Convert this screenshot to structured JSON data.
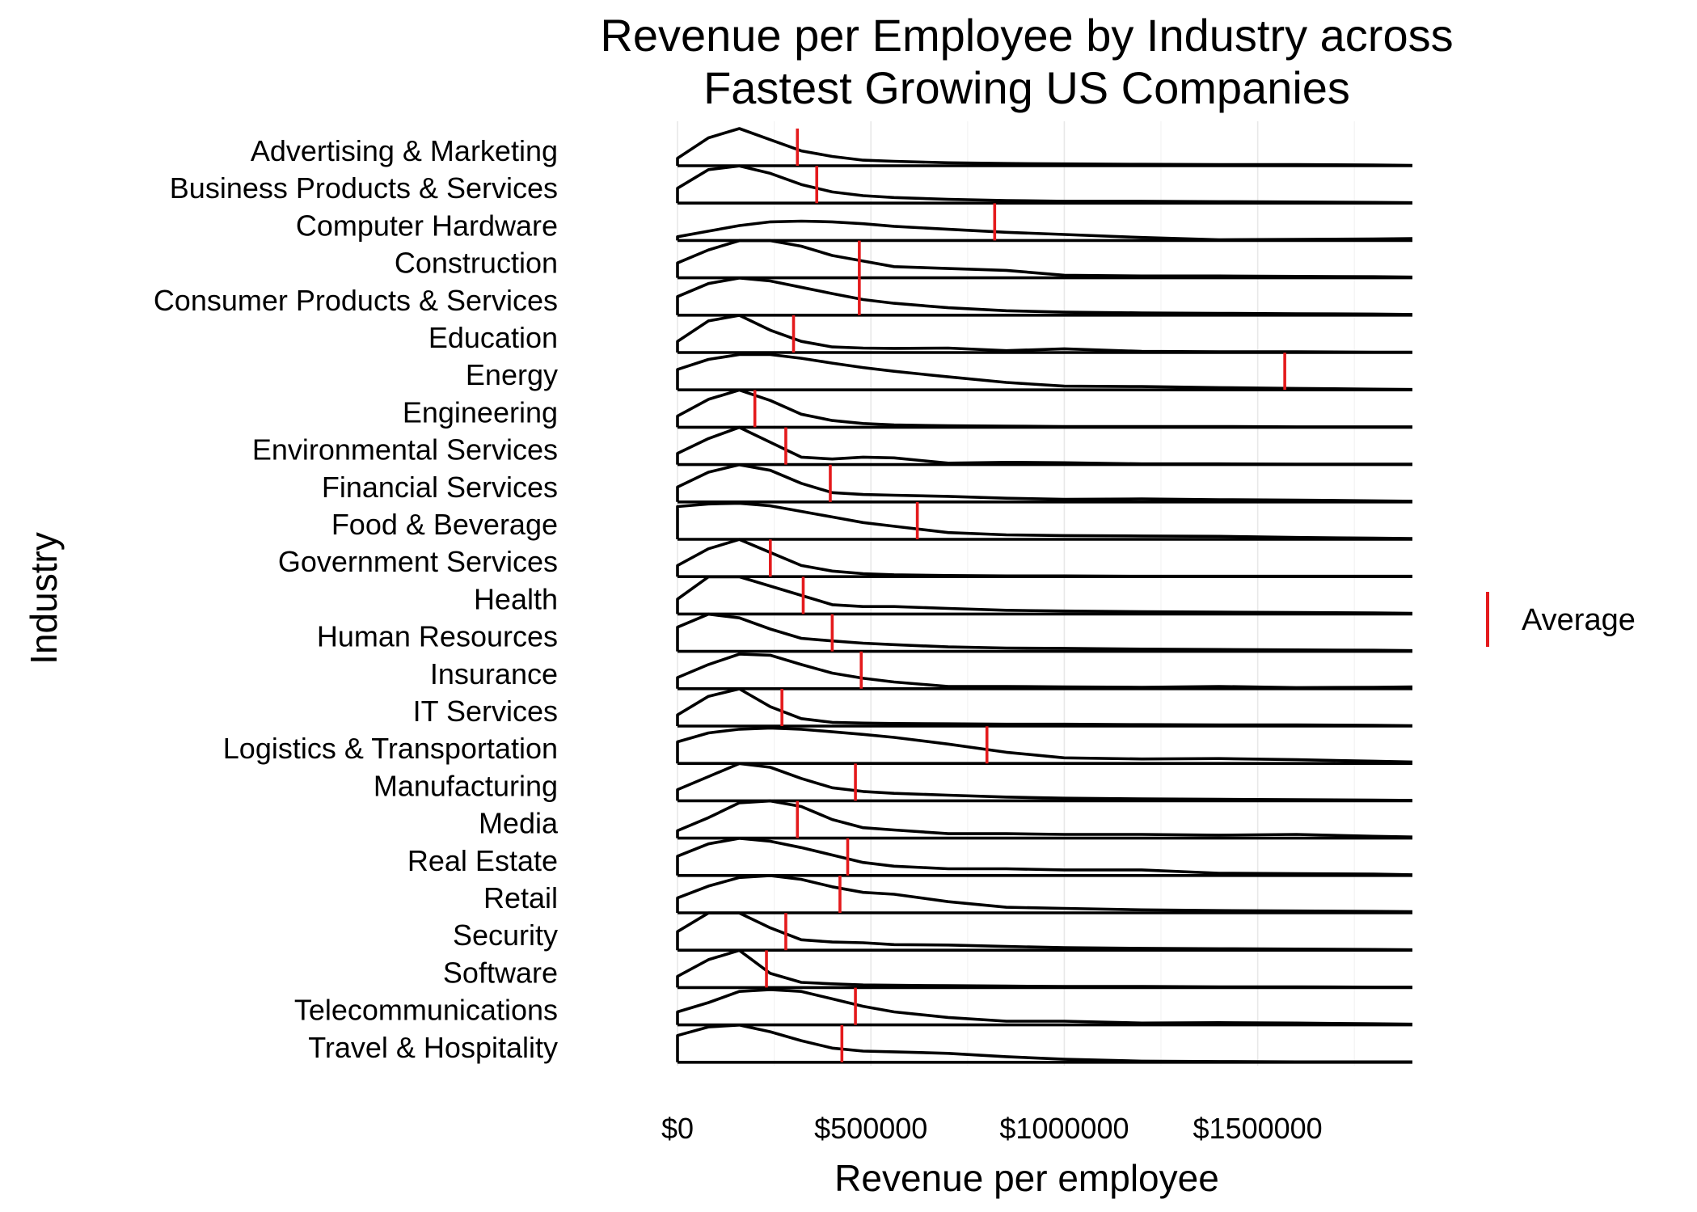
{
  "chart_data": {
    "type": "ridgeline",
    "title_lines": [
      "Revenue per Employee by Industry across",
      "Fastest Growing US Companies"
    ],
    "xlabel": "Revenue per employee",
    "ylabel": "Industry",
    "x_range": [
      0,
      1900000
    ],
    "x_ticks": [
      {
        "value": 0,
        "label": "$0"
      },
      {
        "value": 500000,
        "label": "$500000"
      },
      {
        "value": 1000000,
        "label": "$1000000"
      },
      {
        "value": 1500000,
        "label": "$1500000"
      }
    ],
    "grid": true,
    "legend": {
      "position": "right",
      "entries": [
        {
          "label": "Average",
          "color": "#e41a1c",
          "marker": "vertical-line"
        }
      ]
    },
    "density_color": "#000000",
    "average_color": "#e41a1c",
    "sample_x": [
      0,
      80000,
      160000,
      240000,
      320000,
      400000,
      480000,
      560000,
      700000,
      850000,
      1000000,
      1200000,
      1400000,
      1600000,
      1800000,
      1900000
    ],
    "series": [
      {
        "name": "Advertising & Marketing",
        "average": 310000,
        "density": [
          0.2,
          0.75,
          1,
          0.7,
          0.4,
          0.25,
          0.15,
          0.12,
          0.08,
          0.06,
          0.05,
          0.04,
          0.03,
          0.03,
          0.02,
          0.01
        ]
      },
      {
        "name": "Business Products & Services",
        "average": 360000,
        "density": [
          0.4,
          0.9,
          1,
          0.8,
          0.5,
          0.3,
          0.2,
          0.15,
          0.1,
          0.07,
          0.05,
          0.05,
          0.04,
          0.03,
          0.02,
          0.01
        ]
      },
      {
        "name": "Computer Hardware",
        "average": 820000,
        "density": [
          0.1,
          0.25,
          0.4,
          0.5,
          0.52,
          0.5,
          0.45,
          0.38,
          0.3,
          0.22,
          0.16,
          0.08,
          0.02,
          0.03,
          0.04,
          0.05
        ]
      },
      {
        "name": "Construction",
        "average": 470000,
        "density": [
          0.4,
          0.75,
          1,
          1,
          0.85,
          0.6,
          0.45,
          0.3,
          0.25,
          0.2,
          0.07,
          0.05,
          0.05,
          0.04,
          0.03,
          0.02
        ]
      },
      {
        "name": "Consumer Products & Services",
        "average": 470000,
        "density": [
          0.5,
          0.85,
          1,
          0.92,
          0.75,
          0.58,
          0.42,
          0.32,
          0.2,
          0.12,
          0.08,
          0.06,
          0.05,
          0.04,
          0.03,
          0.02
        ]
      },
      {
        "name": "Education",
        "average": 300000,
        "density": [
          0.3,
          0.85,
          1,
          0.6,
          0.3,
          0.15,
          0.12,
          0.11,
          0.12,
          0.05,
          0.1,
          0.03,
          0.02,
          0.02,
          0.01,
          0.01
        ]
      },
      {
        "name": "Energy",
        "average": 1570000,
        "density": [
          0.55,
          0.82,
          0.95,
          0.95,
          0.85,
          0.72,
          0.6,
          0.5,
          0.35,
          0.2,
          0.1,
          0.09,
          0.06,
          0.04,
          0.02,
          0.01
        ]
      },
      {
        "name": "Engineering",
        "average": 200000,
        "density": [
          0.3,
          0.75,
          1,
          0.72,
          0.35,
          0.18,
          0.1,
          0.06,
          0.04,
          0.03,
          0.02,
          0.02,
          0.02,
          0.01,
          0.01,
          0.01
        ]
      },
      {
        "name": "Environmental Services",
        "average": 280000,
        "density": [
          0.3,
          0.7,
          1,
          0.6,
          0.2,
          0.15,
          0.2,
          0.18,
          0.04,
          0.06,
          0.05,
          0.02,
          0.02,
          0.01,
          0.01,
          0.01
        ]
      },
      {
        "name": "Financial Services",
        "average": 395000,
        "density": [
          0.4,
          0.8,
          1,
          0.85,
          0.5,
          0.25,
          0.2,
          0.18,
          0.15,
          0.1,
          0.07,
          0.08,
          0.06,
          0.05,
          0.03,
          0.02
        ]
      },
      {
        "name": "Food & Beverage",
        "average": 620000,
        "density": [
          0.88,
          0.95,
          0.97,
          0.9,
          0.75,
          0.6,
          0.45,
          0.35,
          0.18,
          0.12,
          0.1,
          0.09,
          0.08,
          0.05,
          0.03,
          0.02
        ]
      },
      {
        "name": "Government Services",
        "average": 240000,
        "density": [
          0.3,
          0.75,
          1,
          0.65,
          0.3,
          0.15,
          0.08,
          0.05,
          0.03,
          0.02,
          0.02,
          0.01,
          0.01,
          0.01,
          0.01,
          0.01
        ]
      },
      {
        "name": "Health",
        "average": 325000,
        "density": [
          0.4,
          1,
          1,
          0.75,
          0.5,
          0.25,
          0.2,
          0.2,
          0.15,
          0.1,
          0.08,
          0.06,
          0.05,
          0.04,
          0.03,
          0.02
        ]
      },
      {
        "name": "Human Resources",
        "average": 400000,
        "density": [
          0.65,
          1,
          0.9,
          0.6,
          0.35,
          0.28,
          0.22,
          0.18,
          0.12,
          0.09,
          0.08,
          0.06,
          0.05,
          0.04,
          0.03,
          0.02
        ]
      },
      {
        "name": "Insurance",
        "average": 475000,
        "density": [
          0.3,
          0.65,
          0.93,
          0.9,
          0.65,
          0.42,
          0.28,
          0.18,
          0.06,
          0.06,
          0.05,
          0.04,
          0.06,
          0.03,
          0.04,
          0.05
        ]
      },
      {
        "name": "IT Services",
        "average": 270000,
        "density": [
          0.3,
          0.8,
          1,
          0.52,
          0.2,
          0.1,
          0.08,
          0.07,
          0.06,
          0.05,
          0.05,
          0.04,
          0.03,
          0.03,
          0.02,
          0.01
        ]
      },
      {
        "name": "Logistics & Transportation",
        "average": 800000,
        "density": [
          0.58,
          0.82,
          0.92,
          0.95,
          0.92,
          0.85,
          0.78,
          0.7,
          0.52,
          0.3,
          0.15,
          0.12,
          0.13,
          0.1,
          0.06,
          0.04
        ]
      },
      {
        "name": "Manufacturing",
        "average": 460000,
        "density": [
          0.3,
          0.65,
          1,
          0.9,
          0.6,
          0.35,
          0.25,
          0.2,
          0.15,
          0.1,
          0.07,
          0.05,
          0.04,
          0.03,
          0.02,
          0.01
        ]
      },
      {
        "name": "Media",
        "average": 310000,
        "density": [
          0.2,
          0.55,
          0.95,
          1,
          0.85,
          0.5,
          0.28,
          0.22,
          0.12,
          0.12,
          0.1,
          0.1,
          0.08,
          0.1,
          0.05,
          0.03
        ]
      },
      {
        "name": "Real Estate",
        "average": 440000,
        "density": [
          0.52,
          0.85,
          1,
          0.92,
          0.75,
          0.55,
          0.35,
          0.25,
          0.18,
          0.18,
          0.15,
          0.15,
          0.06,
          0.05,
          0.04,
          0.02
        ]
      },
      {
        "name": "Retail",
        "average": 420000,
        "density": [
          0.4,
          0.72,
          0.95,
          1,
          0.9,
          0.7,
          0.55,
          0.5,
          0.3,
          0.15,
          0.12,
          0.08,
          0.06,
          0.05,
          0.04,
          0.03
        ]
      },
      {
        "name": "Security",
        "average": 280000,
        "density": [
          0.5,
          1,
          1,
          0.6,
          0.28,
          0.22,
          0.2,
          0.15,
          0.14,
          0.1,
          0.07,
          0.05,
          0.04,
          0.03,
          0.02,
          0.01
        ]
      },
      {
        "name": "Software",
        "average": 230000,
        "density": [
          0.3,
          0.75,
          1,
          0.38,
          0.14,
          0.1,
          0.07,
          0.06,
          0.05,
          0.04,
          0.03,
          0.03,
          0.02,
          0.02,
          0.01,
          0.01
        ]
      },
      {
        "name": "Telecommunications",
        "average": 460000,
        "density": [
          0.35,
          0.6,
          0.9,
          0.95,
          0.9,
          0.7,
          0.5,
          0.35,
          0.2,
          0.1,
          0.1,
          0.05,
          0.06,
          0.05,
          0.03,
          0.02
        ]
      },
      {
        "name": "Travel & Hospitality",
        "average": 425000,
        "density": [
          0.72,
          0.95,
          1,
          0.82,
          0.58,
          0.38,
          0.3,
          0.28,
          0.24,
          0.15,
          0.08,
          0.03,
          0.02,
          0.01,
          0.01,
          0.01
        ]
      }
    ]
  }
}
